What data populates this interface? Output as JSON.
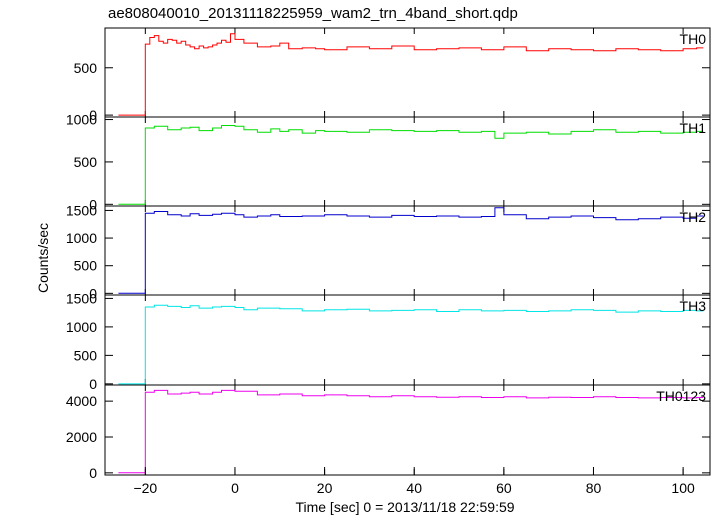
{
  "chart_data": {
    "type": "line",
    "title": "ae808040010_20131118225959_wam2_trn_4band_short.qdp",
    "xlabel": "Time [sec] 0 = 2013/11/18 22:59:59",
    "ylabel": "Counts/sec",
    "xlim": [
      -29,
      106
    ],
    "x_ticks": [
      -20,
      0,
      20,
      40,
      60,
      80,
      100
    ],
    "x_tick_labels": [
      "−20",
      "0",
      "20",
      "40",
      "60",
      "80",
      "100"
    ],
    "grid": false,
    "step": true,
    "panels": [
      {
        "name": "TH0",
        "color": "#ff0000",
        "ylim": [
          -20,
          920
        ],
        "y_ticks": [
          0,
          500
        ],
        "y_tick_labels": [
          "0",
          "500"
        ],
        "x": [
          -26,
          -20,
          -19,
          -18,
          -17,
          -16,
          -15,
          -14,
          -13,
          -12,
          -11,
          -10,
          -9,
          -8,
          -7,
          -6,
          -5,
          -4,
          -3,
          -2,
          -1,
          0,
          2,
          5,
          8,
          10,
          12,
          15,
          18,
          20,
          25,
          30,
          35,
          40,
          45,
          50,
          55,
          60,
          65,
          70,
          75,
          80,
          85,
          90,
          95,
          100,
          103
        ],
        "y": [
          0,
          750,
          820,
          840,
          780,
          760,
          800,
          790,
          760,
          780,
          740,
          720,
          700,
          730,
          710,
          720,
          740,
          760,
          790,
          770,
          860,
          800,
          760,
          720,
          730,
          760,
          700,
          710,
          700,
          690,
          720,
          700,
          730,
          690,
          700,
          710,
          690,
          720,
          680,
          700,
          690,
          680,
          700,
          690,
          680,
          700,
          710
        ]
      },
      {
        "name": "TH1",
        "color": "#00dd00",
        "ylim": [
          -20,
          1030
        ],
        "y_ticks": [
          0,
          500,
          1000
        ],
        "y_tick_labels": [
          "0",
          "500",
          "1000"
        ],
        "x": [
          -26,
          -20,
          -18,
          -15,
          -12,
          -10,
          -8,
          -5,
          -3,
          0,
          2,
          5,
          8,
          10,
          12,
          15,
          18,
          20,
          25,
          30,
          35,
          40,
          45,
          50,
          55,
          58,
          60,
          65,
          70,
          75,
          80,
          85,
          90,
          95,
          100,
          103
        ],
        "y": [
          0,
          900,
          920,
          880,
          900,
          910,
          870,
          900,
          930,
          920,
          880,
          850,
          890,
          860,
          880,
          840,
          870,
          860,
          850,
          880,
          870,
          860,
          870,
          850,
          860,
          780,
          840,
          850,
          830,
          860,
          880,
          850,
          860,
          840,
          850,
          860
        ]
      },
      {
        "name": "TH2",
        "color": "#0000cc",
        "ylim": [
          -30,
          1580
        ],
        "y_ticks": [
          0,
          500,
          1000,
          1500
        ],
        "y_tick_labels": [
          "0",
          "500",
          "1000",
          "1500"
        ],
        "x": [
          -26,
          -20,
          -18,
          -15,
          -12,
          -10,
          -8,
          -5,
          -3,
          0,
          2,
          5,
          8,
          10,
          15,
          20,
          25,
          30,
          35,
          40,
          45,
          50,
          55,
          58,
          60,
          65,
          70,
          75,
          80,
          85,
          90,
          95,
          100,
          103
        ],
        "y": [
          0,
          1450,
          1480,
          1420,
          1400,
          1440,
          1410,
          1430,
          1450,
          1420,
          1380,
          1400,
          1420,
          1390,
          1400,
          1420,
          1400,
          1380,
          1410,
          1390,
          1400,
          1380,
          1390,
          1550,
          1420,
          1350,
          1380,
          1400,
          1370,
          1330,
          1350,
          1380,
          1360,
          1400
        ]
      },
      {
        "name": "TH3",
        "color": "#00e5e5",
        "ylim": [
          -20,
          1560
        ],
        "y_ticks": [
          0,
          500,
          1000,
          1500
        ],
        "y_tick_labels": [
          "0",
          "500",
          "1000",
          "1500"
        ],
        "x": [
          -26,
          -20,
          -18,
          -15,
          -12,
          -10,
          -8,
          -5,
          -3,
          0,
          2,
          5,
          10,
          15,
          20,
          25,
          30,
          35,
          40,
          45,
          50,
          55,
          60,
          65,
          70,
          75,
          80,
          85,
          90,
          95,
          100,
          103
        ],
        "y": [
          0,
          1350,
          1380,
          1360,
          1340,
          1370,
          1330,
          1350,
          1360,
          1340,
          1300,
          1330,
          1320,
          1280,
          1300,
          1310,
          1280,
          1290,
          1300,
          1270,
          1300,
          1280,
          1290,
          1270,
          1280,
          1300,
          1290,
          1260,
          1280,
          1270,
          1290,
          1280
        ]
      },
      {
        "name": "TH0123",
        "color": "#ee00ee",
        "ylim": [
          -120,
          4900
        ],
        "y_ticks": [
          0,
          2000,
          4000
        ],
        "y_tick_labels": [
          "0",
          "2000",
          "4000"
        ],
        "x": [
          -26,
          -20,
          -18,
          -15,
          -12,
          -10,
          -8,
          -5,
          -3,
          0,
          5,
          10,
          15,
          20,
          25,
          30,
          35,
          40,
          45,
          50,
          55,
          60,
          65,
          70,
          75,
          80,
          85,
          90,
          95,
          100,
          103
        ],
        "y": [
          0,
          4500,
          4600,
          4400,
          4450,
          4500,
          4400,
          4500,
          4600,
          4550,
          4350,
          4400,
          4300,
          4350,
          4300,
          4250,
          4300,
          4250,
          4220,
          4250,
          4200,
          4250,
          4180,
          4220,
          4200,
          4250,
          4200,
          4180,
          4200,
          4180,
          4200
        ]
      }
    ]
  }
}
